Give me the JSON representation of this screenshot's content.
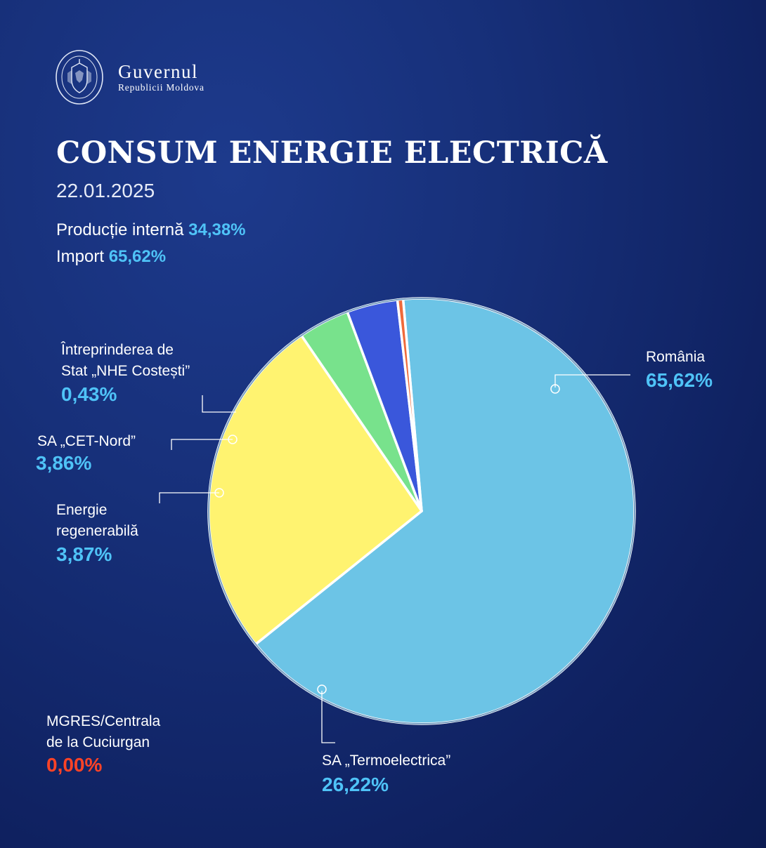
{
  "header": {
    "org_name": "Guvernul",
    "org_sub": "Republicii Moldova",
    "seal_text": "GUVERNUL REPUBLICII MOLDOVA"
  },
  "title": "CONSUM ENERGIE ELECTRICĂ",
  "date": "22.01.2025",
  "summary": {
    "production_label": "Producție internă",
    "production_value": "34,38%",
    "import_label": "Import",
    "import_value": "65,62%"
  },
  "colors": {
    "value_blue": "#4fc3f7",
    "value_red": "#ff4326"
  },
  "chart_data": {
    "type": "pie",
    "title": "CONSUM ENERGIE ELECTRICĂ",
    "slices": [
      {
        "name": "România",
        "value": 65.62,
        "label": "65,62%",
        "color": "#6cc4e6"
      },
      {
        "name": "SA „Termoelectrica”",
        "value": 26.22,
        "label": "26,22%",
        "color": "#fff370"
      },
      {
        "name": "MGRES/Centrala de la Cuciurgan",
        "value": 0.0,
        "label": "0,00%",
        "color": "#e8401c"
      },
      {
        "name": "Energie regenerabilă",
        "value": 3.87,
        "label": "3,87%",
        "color": "#78e28c"
      },
      {
        "name": "SA „CET-Nord”",
        "value": 3.86,
        "label": "3,86%",
        "color": "#3a57db"
      },
      {
        "name": "Întreprinderea de Stat „NHE Costești”",
        "value": 0.43,
        "label": "0,43%",
        "color": "#ef6a3a"
      }
    ]
  },
  "labels": {
    "romania": {
      "text": "România",
      "value": "65,62%"
    },
    "termo": {
      "text": "SA „Termoelectrica”",
      "value": "26,22%"
    },
    "mgres": {
      "line1": "MGRES/Centrala",
      "line2": "de la Cuciurgan",
      "value": "0,00%"
    },
    "regen": {
      "line1": "Energie",
      "line2": "regenerabilă",
      "value": "3,87%"
    },
    "cet": {
      "text": "SA „CET-Nord”",
      "value": "3,86%"
    },
    "nhe": {
      "line1": "Întreprinderea de",
      "line2": "Stat „NHE Costești”",
      "value": "0,43%"
    }
  }
}
